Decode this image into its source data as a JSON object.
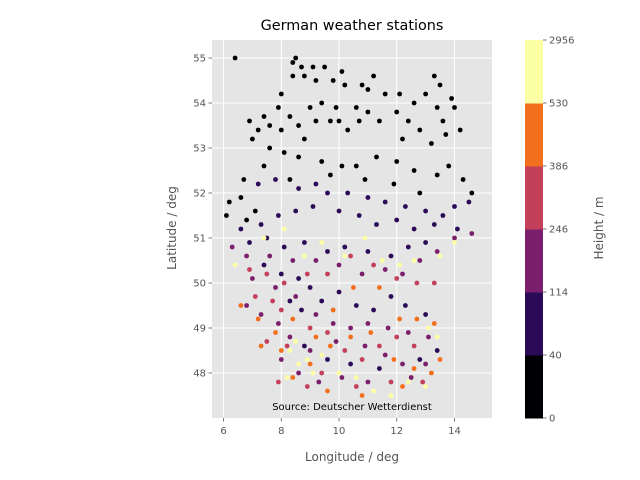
{
  "chart_data": {
    "type": "scatter",
    "title": "German weather stations",
    "xlabel": "Longitude / deg",
    "ylabel": "Latitude / deg",
    "xlim": [
      5.6,
      15.3
    ],
    "ylim": [
      47.0,
      55.4
    ],
    "xticks": [
      "6",
      "8",
      "10",
      "12",
      "14"
    ],
    "yticks": [
      "48",
      "49",
      "50",
      "51",
      "52",
      "53",
      "54",
      "55"
    ],
    "grid": true,
    "annotation": "Source: Deutscher Wetterdienst",
    "colorbar": {
      "label": "Height / m",
      "boundaries": [
        "0",
        "40",
        "114",
        "246",
        "386",
        "530",
        "2956"
      ],
      "colors": [
        "#000004",
        "#2b0a57",
        "#7b1f6c",
        "#c3405a",
        "#f2701d",
        "#fcffa4"
      ]
    },
    "series": [
      {
        "color_index": 0,
        "points": [
          [
            6.4,
            55.0
          ],
          [
            8.5,
            55.0
          ],
          [
            8.4,
            54.9
          ],
          [
            8.7,
            54.8
          ],
          [
            9.1,
            54.8
          ],
          [
            9.5,
            54.8
          ],
          [
            10.1,
            54.7
          ],
          [
            8.4,
            54.6
          ],
          [
            8.8,
            54.6
          ],
          [
            9.2,
            54.5
          ],
          [
            9.8,
            54.5
          ],
          [
            10.2,
            54.4
          ],
          [
            10.8,
            54.4
          ],
          [
            11.2,
            54.6
          ],
          [
            11.0,
            54.3
          ],
          [
            11.6,
            54.2
          ],
          [
            12.1,
            54.2
          ],
          [
            12.6,
            54.0
          ],
          [
            13.3,
            54.6
          ],
          [
            13.5,
            54.4
          ],
          [
            13.0,
            54.2
          ],
          [
            13.9,
            54.1
          ],
          [
            14.0,
            53.9
          ],
          [
            13.4,
            53.9
          ],
          [
            13.6,
            53.6
          ],
          [
            8.0,
            54.2
          ],
          [
            7.9,
            53.9
          ],
          [
            7.4,
            53.7
          ],
          [
            6.9,
            53.6
          ],
          [
            7.2,
            53.4
          ],
          [
            7.6,
            53.5
          ],
          [
            8.0,
            53.4
          ],
          [
            8.3,
            53.7
          ],
          [
            8.6,
            53.5
          ],
          [
            8.8,
            53.2
          ],
          [
            9.0,
            53.9
          ],
          [
            9.4,
            54.0
          ],
          [
            9.2,
            53.6
          ],
          [
            9.7,
            53.6
          ],
          [
            10.0,
            53.6
          ],
          [
            10.3,
            53.4
          ],
          [
            9.9,
            53.9
          ],
          [
            10.6,
            53.9
          ],
          [
            10.7,
            53.6
          ],
          [
            11.4,
            53.6
          ],
          [
            11.0,
            53.8
          ],
          [
            12.0,
            53.8
          ],
          [
            12.4,
            53.6
          ],
          [
            12.2,
            53.2
          ],
          [
            12.8,
            53.4
          ],
          [
            13.2,
            53.1
          ],
          [
            13.7,
            53.3
          ],
          [
            14.2,
            53.4
          ],
          [
            7.0,
            53.2
          ],
          [
            7.6,
            53.0
          ],
          [
            8.1,
            52.9
          ],
          [
            8.6,
            52.8
          ],
          [
            9.4,
            52.7
          ],
          [
            10.1,
            52.6
          ],
          [
            10.6,
            52.6
          ],
          [
            11.3,
            52.8
          ],
          [
            12.0,
            52.7
          ],
          [
            12.6,
            52.5
          ],
          [
            13.4,
            52.4
          ],
          [
            13.8,
            52.6
          ],
          [
            14.3,
            52.3
          ],
          [
            14.6,
            52.0
          ],
          [
            7.4,
            52.6
          ],
          [
            6.7,
            52.3
          ],
          [
            6.2,
            51.8
          ],
          [
            6.6,
            51.9
          ],
          [
            8.3,
            52.3
          ],
          [
            9.7,
            52.4
          ],
          [
            10.9,
            52.3
          ],
          [
            11.9,
            52.2
          ],
          [
            12.8,
            52.0
          ],
          [
            6.1,
            51.5
          ],
          [
            6.8,
            51.4
          ],
          [
            7.1,
            51.6
          ]
        ]
      },
      {
        "color_index": 1,
        "points": [
          [
            7.2,
            52.2
          ],
          [
            7.8,
            52.3
          ],
          [
            8.6,
            52.1
          ],
          [
            9.2,
            52.2
          ],
          [
            9.6,
            52.0
          ],
          [
            10.3,
            52.0
          ],
          [
            11.0,
            51.9
          ],
          [
            11.6,
            51.8
          ],
          [
            12.3,
            51.7
          ],
          [
            13.0,
            51.6
          ],
          [
            13.6,
            51.5
          ],
          [
            14.0,
            51.7
          ],
          [
            14.5,
            51.8
          ],
          [
            13.3,
            51.3
          ],
          [
            14.1,
            51.2
          ],
          [
            12.6,
            51.2
          ],
          [
            12.0,
            51.4
          ],
          [
            11.3,
            51.3
          ],
          [
            10.7,
            51.5
          ],
          [
            10.0,
            51.6
          ],
          [
            9.1,
            51.7
          ],
          [
            8.5,
            51.6
          ],
          [
            7.9,
            51.5
          ],
          [
            7.3,
            51.3
          ],
          [
            6.6,
            51.2
          ],
          [
            6.9,
            50.9
          ],
          [
            7.5,
            51.0
          ],
          [
            8.1,
            50.8
          ],
          [
            8.8,
            50.9
          ],
          [
            9.6,
            50.7
          ],
          [
            10.2,
            50.8
          ],
          [
            11.0,
            50.7
          ],
          [
            11.8,
            50.6
          ],
          [
            12.4,
            50.8
          ],
          [
            13.0,
            50.9
          ],
          [
            7.4,
            50.4
          ],
          [
            8.0,
            50.2
          ],
          [
            8.6,
            50.1
          ],
          [
            9.0,
            49.9
          ],
          [
            8.3,
            49.6
          ],
          [
            8.7,
            49.4
          ],
          [
            9.4,
            49.6
          ],
          [
            10.0,
            49.8
          ],
          [
            10.6,
            49.5
          ],
          [
            11.2,
            49.4
          ],
          [
            11.8,
            49.7
          ],
          [
            12.3,
            49.5
          ],
          [
            13.0,
            49.3
          ],
          [
            8.8,
            48.6
          ],
          [
            9.6,
            48.3
          ],
          [
            10.4,
            48.2
          ],
          [
            11.4,
            48.1
          ],
          [
            12.8,
            48.3
          ],
          [
            13.4,
            48.5
          ]
        ]
      },
      {
        "color_index": 2,
        "points": [
          [
            6.3,
            50.8
          ],
          [
            6.8,
            50.6
          ],
          [
            7.6,
            50.6
          ],
          [
            8.4,
            50.5
          ],
          [
            9.2,
            50.5
          ],
          [
            10.0,
            50.4
          ],
          [
            10.8,
            50.2
          ],
          [
            11.6,
            50.3
          ],
          [
            12.2,
            50.2
          ],
          [
            12.8,
            50.5
          ],
          [
            13.4,
            50.7
          ],
          [
            14.0,
            51.0
          ],
          [
            14.6,
            51.1
          ],
          [
            7.0,
            50.1
          ],
          [
            7.8,
            49.9
          ],
          [
            8.5,
            49.7
          ],
          [
            9.2,
            49.3
          ],
          [
            9.8,
            49.1
          ],
          [
            10.4,
            49.0
          ],
          [
            11.0,
            49.1
          ],
          [
            11.7,
            49.0
          ],
          [
            12.4,
            48.9
          ],
          [
            13.1,
            48.8
          ],
          [
            7.3,
            49.3
          ],
          [
            6.8,
            49.5
          ],
          [
            7.9,
            49.1
          ],
          [
            8.3,
            48.8
          ],
          [
            9.0,
            48.5
          ],
          [
            9.9,
            48.7
          ],
          [
            10.9,
            48.6
          ],
          [
            11.6,
            48.4
          ],
          [
            12.2,
            48.2
          ],
          [
            13.0,
            48.2
          ],
          [
            8.0,
            48.3
          ],
          [
            8.6,
            48.0
          ],
          [
            9.3,
            47.8
          ],
          [
            10.1,
            47.9
          ],
          [
            11.0,
            47.8
          ],
          [
            12.5,
            47.9
          ]
        ]
      },
      {
        "color_index": 3,
        "points": [
          [
            6.9,
            50.3
          ],
          [
            7.5,
            50.2
          ],
          [
            8.1,
            50.0
          ],
          [
            8.9,
            50.2
          ],
          [
            9.6,
            50.2
          ],
          [
            10.4,
            50.6
          ],
          [
            11.2,
            50.4
          ],
          [
            12.0,
            50.1
          ],
          [
            12.7,
            50.0
          ],
          [
            13.3,
            50.0
          ],
          [
            7.1,
            49.7
          ],
          [
            7.7,
            49.6
          ],
          [
            8.0,
            49.4
          ],
          [
            9.0,
            49.0
          ],
          [
            9.6,
            48.9
          ],
          [
            10.2,
            48.5
          ],
          [
            10.8,
            48.3
          ],
          [
            11.4,
            48.6
          ],
          [
            12.0,
            48.8
          ],
          [
            12.6,
            48.6
          ],
          [
            7.5,
            48.7
          ],
          [
            8.2,
            48.6
          ],
          [
            9.4,
            48.0
          ],
          [
            10.6,
            47.7
          ],
          [
            11.8,
            47.8
          ],
          [
            7.9,
            47.8
          ],
          [
            8.9,
            47.7
          ],
          [
            12.9,
            47.8
          ]
        ]
      },
      {
        "color_index": 4,
        "points": [
          [
            6.6,
            49.5
          ],
          [
            7.2,
            49.2
          ],
          [
            7.8,
            48.9
          ],
          [
            8.4,
            49.2
          ],
          [
            9.2,
            48.8
          ],
          [
            9.8,
            49.4
          ],
          [
            10.5,
            49.9
          ],
          [
            11.4,
            49.9
          ],
          [
            12.1,
            49.2
          ],
          [
            12.7,
            49.2
          ],
          [
            13.3,
            49.1
          ],
          [
            7.3,
            48.6
          ],
          [
            8.0,
            48.5
          ],
          [
            9.0,
            48.2
          ],
          [
            9.7,
            48.6
          ],
          [
            10.4,
            48.8
          ],
          [
            11.1,
            48.9
          ],
          [
            11.9,
            48.3
          ],
          [
            12.6,
            48.1
          ],
          [
            13.2,
            48.0
          ],
          [
            8.4,
            47.9
          ],
          [
            9.6,
            47.6
          ],
          [
            10.8,
            47.5
          ],
          [
            12.2,
            47.7
          ],
          [
            13.5,
            48.3
          ]
        ]
      },
      {
        "color_index": 5,
        "points": [
          [
            6.4,
            50.4
          ],
          [
            7.4,
            51.0
          ],
          [
            8.1,
            51.2
          ],
          [
            8.8,
            50.6
          ],
          [
            9.4,
            50.9
          ],
          [
            10.2,
            50.6
          ],
          [
            10.9,
            51.0
          ],
          [
            11.5,
            50.5
          ],
          [
            12.1,
            50.4
          ],
          [
            12.6,
            50.5
          ],
          [
            13.5,
            50.6
          ],
          [
            14.0,
            50.9
          ],
          [
            8.3,
            48.5
          ],
          [
            8.6,
            48.2
          ],
          [
            8.2,
            47.9
          ],
          [
            8.9,
            48.3
          ],
          [
            9.4,
            48.4
          ],
          [
            10.0,
            48.0
          ],
          [
            10.6,
            47.9
          ],
          [
            11.2,
            47.6
          ],
          [
            11.8,
            47.5
          ],
          [
            12.4,
            47.8
          ],
          [
            13.0,
            47.7
          ],
          [
            8.5,
            48.7
          ],
          [
            9.1,
            48.0
          ],
          [
            13.1,
            49.0
          ],
          [
            13.4,
            48.8
          ]
        ]
      }
    ]
  }
}
